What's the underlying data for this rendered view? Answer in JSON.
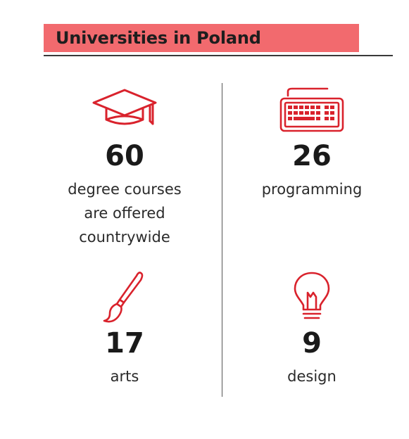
{
  "header": {
    "title": "Universities in Poland",
    "accent_color": "#f26a6e"
  },
  "stats": [
    {
      "icon": "graduation-cap-icon",
      "number": "60",
      "label_lines": [
        "degree courses",
        "are offered",
        "countrywide"
      ]
    },
    {
      "icon": "keyboard-icon",
      "number": "26",
      "label_lines": [
        "programming"
      ]
    },
    {
      "icon": "paintbrush-icon",
      "number": "17",
      "label_lines": [
        "arts"
      ]
    },
    {
      "icon": "lightbulb-icon",
      "number": "9",
      "label_lines": [
        "design"
      ]
    }
  ],
  "icon_color": "#d9222c"
}
